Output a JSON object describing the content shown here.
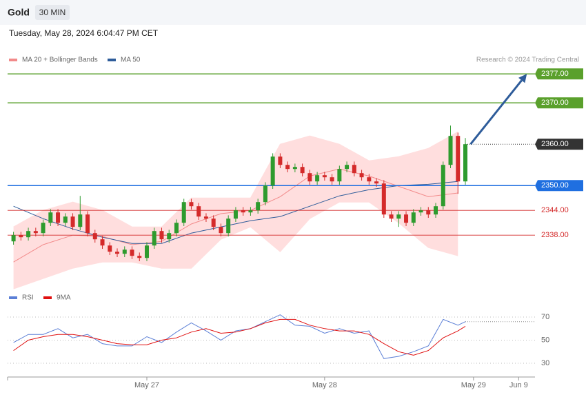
{
  "chart_data": [
    {
      "type": "candlestick",
      "title": "Gold",
      "subtitle": "30 MIN",
      "timestamp": "Tuesday, May 28, 2024 6:04:47 PM CET",
      "credit": "Research © 2024 Trading Central",
      "xlim": [
        5.2,
        76.4
      ],
      "ylim": [
        2325.7,
        2388.2
      ],
      "up_color": "#2e9b2e",
      "down_color": "#d42a2a",
      "x": [
        6,
        7,
        8,
        9,
        10,
        11,
        12,
        13,
        14,
        15,
        16,
        17,
        18,
        19,
        20,
        21,
        22,
        23,
        24,
        25,
        26,
        27,
        28,
        29,
        30,
        31,
        32,
        33,
        34,
        35,
        36,
        37,
        38,
        39,
        40,
        41,
        42,
        43,
        44,
        45,
        46,
        47,
        48,
        49,
        50,
        51,
        52,
        53,
        54,
        55,
        56,
        57,
        58,
        59,
        60,
        61,
        62,
        63,
        64,
        65,
        66,
        67
      ],
      "open": [
        2336.5,
        2338,
        2337.5,
        2339,
        2338.5,
        2341,
        2343.5,
        2341,
        2342.5,
        2340,
        2343,
        2338.5,
        2337,
        2335.5,
        2334,
        2333.5,
        2334.5,
        2333,
        2332.5,
        2335.5,
        2339,
        2337,
        2338.5,
        2341,
        2346,
        2345,
        2342.5,
        2342,
        2340,
        2338.5,
        2342,
        2344,
        2343.5,
        2344,
        2346,
        2350,
        2357,
        2355,
        2354,
        2354.5,
        2353,
        2351,
        2352.5,
        2352,
        2351,
        2354,
        2355,
        2353,
        2352,
        2351,
        2350.5,
        2343,
        2342,
        2343,
        2341,
        2343.5,
        2344,
        2343,
        2345,
        2355,
        2362,
        2351
      ],
      "high": [
        2338.8,
        2338.8,
        2339.8,
        2339.8,
        2341.8,
        2344.3,
        2344.3,
        2343.3,
        2343.3,
        2347.5,
        2343.8,
        2339.3,
        2337.8,
        2336.3,
        2334.8,
        2335.3,
        2335.3,
        2333.8,
        2336.3,
        2339.8,
        2339.8,
        2339.3,
        2341.8,
        2346.8,
        2346.8,
        2345.8,
        2343.3,
        2342.8,
        2340.8,
        2342.8,
        2344.8,
        2344.8,
        2344.8,
        2346.8,
        2350.8,
        2357.8,
        2357.8,
        2355.8,
        2355.3,
        2355.3,
        2353.8,
        2353.3,
        2353.3,
        2352.8,
        2354.8,
        2355.8,
        2355.8,
        2353.8,
        2352.8,
        2351.8,
        2351.3,
        2343.8,
        2343.8,
        2343.8,
        2344.3,
        2344.8,
        2344.8,
        2345.8,
        2355.8,
        2364.5,
        2362.8,
        2361.5
      ],
      "low": [
        2335.7,
        2336.7,
        2336.7,
        2337.7,
        2337.7,
        2340.2,
        2340.2,
        2340.2,
        2339.2,
        2339.2,
        2337.7,
        2336.2,
        2334.7,
        2333.2,
        2332.7,
        2332.7,
        2332.2,
        2331.7,
        2331.7,
        2334.7,
        2336.2,
        2336.2,
        2337.7,
        2340.2,
        2344.2,
        2341.7,
        2341.2,
        2339.2,
        2337.7,
        2337.7,
        2341.2,
        2342.7,
        2342.7,
        2343.2,
        2345.2,
        2349.2,
        2354.2,
        2353.2,
        2353.2,
        2352.2,
        2350.2,
        2350.2,
        2351.2,
        2350.2,
        2350.2,
        2353.2,
        2352.2,
        2351.2,
        2350.2,
        2349.7,
        2342.2,
        2341.2,
        2340,
        2340.2,
        2340.2,
        2342.7,
        2342.2,
        2342.2,
        2344.2,
        2354.2,
        2348,
        2350.2
      ],
      "close": [
        2338,
        2337.5,
        2339,
        2338.5,
        2341,
        2343.5,
        2341,
        2342.5,
        2340,
        2343,
        2338.5,
        2337,
        2335.5,
        2334,
        2333.5,
        2334.5,
        2333,
        2332.5,
        2335.5,
        2339,
        2337,
        2338.5,
        2341,
        2346,
        2345,
        2342.5,
        2342,
        2340,
        2338.5,
        2342,
        2344,
        2343.5,
        2344,
        2346,
        2350,
        2357,
        2355,
        2354,
        2354.5,
        2353,
        2351,
        2352.5,
        2352,
        2351,
        2354,
        2355,
        2353,
        2352,
        2351,
        2350.5,
        2343,
        2342,
        2343,
        2341,
        2343.5,
        2344,
        2343,
        2345,
        2355,
        2362,
        2351,
        2360
      ],
      "series": [
        {
          "name": "MA 20 + Bollinger Bands",
          "color": "#f28a8a",
          "band_color": "#ffdede",
          "x": [
            6,
            10,
            14,
            18,
            22,
            26,
            30,
            34,
            38,
            42,
            46,
            50,
            54,
            58,
            62,
            66
          ],
          "values": [
            2331.5,
            2335.7,
            2338,
            2337.7,
            2335.7,
            2336.5,
            2340.7,
            2343.2,
            2344,
            2347.3,
            2352.3,
            2354,
            2352.3,
            2349.8,
            2347.3,
            2348.2
          ],
          "upper": [
            2340,
            2344,
            2346,
            2344,
            2340,
            2340,
            2347,
            2347,
            2347,
            2360,
            2362,
            2360,
            2356,
            2357,
            2359,
            2363
          ],
          "lower": [
            2325,
            2327.5,
            2330,
            2331.5,
            2331.5,
            2330,
            2330,
            2337,
            2340,
            2334,
            2342,
            2346,
            2346,
            2341,
            2335,
            2333
          ]
        },
        {
          "name": "MA 50",
          "color": "#2e5c9a",
          "x": [
            6,
            10,
            14,
            18,
            22,
            26,
            30,
            34,
            38,
            42,
            46,
            50,
            54,
            58,
            62,
            66
          ],
          "values": [
            2345,
            2342,
            2339.5,
            2337.5,
            2336,
            2336,
            2338.5,
            2340,
            2341.5,
            2342.5,
            2345,
            2347.5,
            2349,
            2350,
            2350.3,
            2351
          ]
        }
      ],
      "levels": [
        {
          "value": 2377,
          "label": "2377.00",
          "color": "#5aa02c",
          "line": "solid",
          "box": true
        },
        {
          "value": 2370,
          "label": "2370.00",
          "color": "#5aa02c",
          "line": "solid",
          "box": true
        },
        {
          "value": 2360,
          "label": "2360.00",
          "color": "#333333",
          "line": "dotted",
          "box": true
        },
        {
          "value": 2350,
          "label": "2350.00",
          "color": "#1f6fe0",
          "line": "solid",
          "box": true
        },
        {
          "value": 2344,
          "label": "2344.00",
          "color": "#d42a2a",
          "line": "thin",
          "box": false
        },
        {
          "value": 2338,
          "label": "2338.00",
          "color": "#d42a2a",
          "line": "thin",
          "box": false
        }
      ],
      "arrow": {
        "color": "#2e5c9a",
        "x": [
          67.7,
          75.3
        ],
        "y": [
          2360,
          2377
        ]
      }
    },
    {
      "type": "line",
      "xlim": [
        5.2,
        76.4
      ],
      "ylim": [
        25,
        76
      ],
      "yticks": [
        30,
        50,
        70
      ],
      "grid": true,
      "xticks": [
        {
          "value": 24,
          "label": "May 27"
        },
        {
          "value": 48,
          "label": "May 28"
        },
        {
          "value": 68.1,
          "label": "May 29"
        },
        {
          "value": 74.2,
          "label": "Jun 9"
        }
      ],
      "x": [
        6,
        8,
        10,
        12,
        14,
        16,
        18,
        20,
        22,
        24,
        26,
        28,
        30,
        32,
        34,
        36,
        38,
        40,
        42,
        44,
        46,
        48,
        50,
        52,
        54,
        56,
        58,
        60,
        62,
        64,
        66,
        67
      ],
      "series": [
        {
          "name": "RSI",
          "color": "#5b7fd6",
          "values": [
            48,
            55,
            55,
            60,
            52,
            55,
            47,
            45,
            45,
            53,
            48,
            57,
            65,
            58,
            50,
            58,
            60,
            66,
            72,
            63,
            62,
            56,
            60,
            56,
            58,
            34,
            36,
            40,
            45,
            68,
            63,
            66
          ]
        },
        {
          "name": "9MA",
          "color": "#e01010",
          "values": [
            41,
            50,
            53,
            55,
            55,
            53,
            50,
            47,
            46,
            46,
            50,
            52,
            57,
            60,
            56,
            57,
            60,
            65,
            68,
            68,
            63,
            60,
            58,
            58,
            55,
            47,
            40,
            37,
            41,
            52,
            58,
            62
          ]
        }
      ]
    }
  ]
}
